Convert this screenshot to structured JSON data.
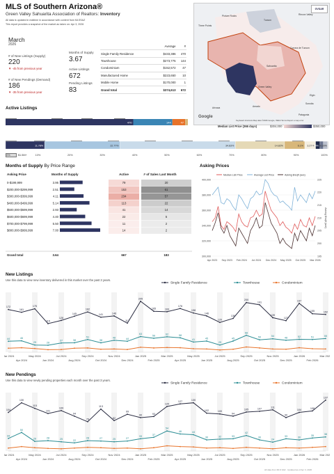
{
  "header": {
    "title": "MLS of Southern Arizona®",
    "subtitle": "Green Valley Sahuarita Association of Realtors",
    "subtitle_bold": "Inventory",
    "note1": "All data is updated in realtime in accordance with content from MLSSAZ",
    "note2": "This report provides a snapshot of the market as taken on:",
    "note_date": "Apr 3, 2026",
    "logo_text": "GVSAR"
  },
  "kpis": {
    "month": "March",
    "year": "2026",
    "new_listings_label": "# of New Listings (Supply)",
    "new_listings_value": "220",
    "new_listings_change": "-45 from previous year",
    "new_pendings_label": "# of New Pendings (Demand)",
    "new_pendings_value": "186",
    "new_pendings_change": "-35 from previous year",
    "mos_label": "Months of Supply",
    "mos_value": "3.67",
    "active_label": "Active Listings",
    "active_value": "672",
    "pending_label": "Pending Listings",
    "pending_value": "83"
  },
  "summary_table": {
    "col_avg": "Average",
    "col_count": "#",
    "rows": [
      {
        "type": "Single Family Residence",
        "avg": "$433,386",
        "count": "470"
      },
      {
        "type": "Townhouse",
        "avg": "$273,775",
        "count": "144"
      },
      {
        "type": "Condominium",
        "avg": "$152,572",
        "count": "47"
      },
      {
        "type": "Manufactured Home",
        "avg": "$223,650",
        "count": "10"
      },
      {
        "type": "Mobile Home",
        "avg": "$170,000",
        "count": "1"
      },
      {
        "type": "Grand total",
        "avg": "$374,613",
        "count": "672"
      }
    ]
  },
  "map": {
    "labels": [
      "Three Points",
      "Tucson",
      "Picture Rocks",
      "Rincon Valley",
      "Corona de Tucson",
      "Sahuarita",
      "Green Valley",
      "Arivaca",
      "Amado",
      "Sonoita",
      "Elgin",
      "Patagonia"
    ],
    "attribution": "Keyboard shortcuts   Map data ©2026 Google, INEGI   Terms   Report a map error",
    "google": "Google",
    "legend_title": "Median List Price (366 days)",
    "legend_min": "$304,000",
    "legend_max": "$350,000",
    "colors": {
      "light": "#f2d6d2",
      "mid": "#e8b4ae",
      "dark": "#2e3561",
      "border": "#c2410c"
    }
  },
  "active_listings": {
    "title": "Active Listings",
    "legend": [
      {
        "label": "Single Family Residence",
        "color": "#2e3561"
      },
      {
        "label": "Townhouse",
        "color": "#3a85b5"
      },
      {
        "label": "Condominium",
        "color": "#e8732a"
      },
      {
        "label": "Manufactured Home",
        "color": "#d8b77a"
      }
    ],
    "bar_labels": [
      "470",
      "144",
      "47"
    ]
  },
  "price_bands": {
    "legend": [
      {
        "label": "$0-$199,999",
        "color": "#2e3561"
      },
      {
        "label": "$200,000-$299,999",
        "color": "#a7c6e0"
      },
      {
        "label": "$300,000-$399,999",
        "color": "#c9dbea"
      },
      {
        "label": "$400,000-$499,999",
        "color": "#e5d9b6"
      },
      {
        "label": "$500,000-$599,999",
        "color": "#d8b77a"
      },
      {
        "label": "$600,000-$699,999",
        "color": "#f5efe1"
      },
      {
        "label": "$700,000-$799,999",
        "color": "#1f2a4a"
      },
      {
        "label": "$800,000-$999,999",
        "color": "#6b7590"
      },
      {
        "label": "$1M-$1.5M",
        "color": "#b9bfcc"
      },
      {
        "label": "$1.5M+",
        "color": "#d9d9d9"
      }
    ],
    "values": [
      11.78,
      22.77,
      34.83,
      14.82,
      6.1,
      3.27,
      1.34,
      1.04,
      1.19,
      0.3
    ],
    "labels": [
      "11.78%",
      "22.77%",
      "34.83%",
      "14.82%",
      "6.1%",
      "3.27%",
      "1.34%",
      "",
      "",
      "0.30%"
    ],
    "ticks": [
      "0%",
      "10%",
      "20%",
      "30%",
      "40%",
      "50%",
      "60%",
      "70%",
      "80%",
      "90%",
      "100%"
    ]
  },
  "mos_section": {
    "title": "Months of Supply",
    "title_suffix": "By Price Range",
    "headers": [
      "Asking Price",
      "Months of Supply",
      "Active",
      "# of Sales Last Month"
    ],
    "rows": [
      {
        "range": "0-$199,999",
        "mos": "3.95",
        "mos_v": 3.95,
        "active": "79",
        "sales": "20",
        "a": 79,
        "s": 20
      },
      {
        "range": "$200,000-$299,999",
        "mos": "2.51",
        "mos_v": 2.51,
        "active": "153",
        "sales": "61",
        "a": 153,
        "s": 61
      },
      {
        "range": "$300,000-$399,999",
        "mos": "4.11",
        "mos_v": 4.11,
        "active": "234",
        "sales": "57",
        "a": 234,
        "s": 57
      },
      {
        "range": "$400,000-$499,999",
        "mos": "5.14",
        "mos_v": 5.14,
        "active": "113",
        "sales": "22",
        "a": 113,
        "s": 22
      },
      {
        "range": "$500,000-$599,999",
        "mos": "2.93",
        "mos_v": 2.93,
        "active": "41",
        "sales": "14",
        "a": 41,
        "s": 14
      },
      {
        "range": "$600,000-$699,999",
        "mos": "4.40",
        "mos_v": 4.4,
        "active": "22",
        "sales": "5",
        "a": 22,
        "s": 5
      },
      {
        "range": "$700,000-$799,999",
        "mos": "5.50",
        "mos_v": 5.5,
        "active": "11",
        "sales": "2",
        "a": 11,
        "s": 2
      },
      {
        "range": "$800,000-$999,999",
        "mos": "7.00",
        "mos_v": 7.0,
        "active": "14",
        "sales": "2",
        "a": 14,
        "s": 2
      }
    ],
    "total": {
      "range": "Grand total",
      "mos": "3.64",
      "active": "667",
      "sales": "183"
    }
  },
  "chart_data": [
    {
      "type": "line",
      "title": "Asking Prices",
      "series": [
        {
          "name": "Median List Price",
          "color": "#e05a5a",
          "axis": "left",
          "values": [
            345000,
            350000,
            365000,
            340000,
            335000,
            345000,
            342000,
            338000,
            332000,
            355000,
            345000,
            340000,
            338000,
            350000,
            352000,
            360000,
            352000,
            355000,
            385000,
            372000,
            360000,
            355000,
            350000,
            340000,
            345000,
            338000,
            335000,
            330000,
            342000,
            335000,
            348000,
            340000,
            338000,
            350000,
            340000,
            352000
          ]
        },
        {
          "name": "Average List Price",
          "color": "#7fb2d8",
          "axis": "left",
          "values": [
            380000,
            385000,
            390000,
            370000,
            368000,
            375000,
            372000,
            365000,
            360000,
            380000,
            375000,
            368000,
            362000,
            375000,
            378000,
            385000,
            380000,
            382000,
            400000,
            395000,
            385000,
            380000,
            378000,
            370000,
            372000,
            368000,
            365000,
            360000,
            390000,
            372000,
            380000,
            375000,
            370000,
            382000,
            375000,
            385000
          ]
        },
        {
          "name": "Asking $/sqft (ave)",
          "color": "#4a2f2f",
          "axis": "right",
          "values": [
            205,
            208,
            212,
            206,
            204,
            207,
            203,
            201,
            199,
            206,
            204,
            202,
            200,
            205,
            207,
            210,
            206,
            207,
            216,
            212,
            208,
            206,
            204,
            200,
            202,
            200,
            199,
            198,
            204,
            201,
            205,
            203,
            201,
            206,
            203,
            207
          ]
        }
      ],
      "x_labels": [
        "Apr 2023",
        "Sep 2023",
        "Feb 2024",
        "Jul 2024",
        "Dec 2024",
        "May 2025",
        "Oct 2025",
        "Mar 2026"
      ],
      "y_left_ticks": [
        "400,000",
        "380,000",
        "360,000",
        "340,000",
        "320,000",
        "300,000"
      ],
      "y_right_ticks": [
        "225",
        "220",
        "215",
        "210",
        "205",
        "200",
        "195"
      ],
      "ylim_left": [
        300000,
        400000
      ],
      "ylim_right": [
        195,
        225
      ],
      "ylabel_right": "Asking $/sqft (ave)"
    },
    {
      "type": "line",
      "title": "New Listings",
      "caption": "Use this data to view new inventory delivered in this market over the past 3 years.",
      "x_labels_top": [
        "Mar 2024",
        "May 2024",
        "Jul 2024",
        "Sep 2024",
        "Nov 2024",
        "Jan 2025",
        "Mar 2025",
        "May 2025",
        "Jul 2025",
        "Sep 2025",
        "Nov 2025",
        "Jan 2026",
        "Mar 2026"
      ],
      "x_labels_bottom": [
        "Apr 2024",
        "Jun 2024",
        "Aug 2024",
        "Oct 2024",
        "Dec 2024",
        "Feb 2025",
        "Apr 2025",
        "Jun 2025",
        "Aug 2025",
        "Oct 2025",
        "Dec 2025",
        "Feb 2026"
      ],
      "ylim": [
        0,
        230
      ],
      "series": [
        {
          "name": "Single Family Residence",
          "color": "#2b2d42",
          "values": [
            172,
            161,
            175,
            115,
            128,
            145,
            162,
            141,
            146,
            117,
            205,
            165,
            163,
            176,
            158,
            146,
            120,
            136,
            200,
            191,
            139,
            127,
            197,
            155,
            152
          ],
          "labels": [
            "172",
            "161",
            "175",
            "115",
            "128",
            "145",
            "162",
            "141",
            "146",
            "117",
            "205",
            "165",
            "163",
            "176",
            "158",
            "146",
            "120",
            "136",
            "200",
            "191",
            "139",
            "127",
            "197",
            "155",
            "152"
          ]
        },
        {
          "name": "Townhouse",
          "color": "#2a8c93",
          "values": [
            44,
            46,
            29,
            28,
            37,
            38,
            51,
            38,
            48,
            44,
            63,
            56,
            62,
            58,
            41,
            45,
            29,
            45,
            68,
            50,
            54,
            48,
            52,
            51,
            55
          ],
          "labels": [
            "44",
            "46",
            "29",
            "28",
            "37",
            "38",
            "51",
            "38",
            "48",
            "44",
            "63",
            "56",
            "62",
            "58",
            "41",
            "45",
            "29",
            "45",
            "68",
            "50",
            "54",
            "48",
            "52",
            "51",
            "55"
          ]
        },
        {
          "name": "Condominium",
          "color": "#e8732a",
          "values": [
            16,
            18,
            15,
            10,
            11,
            16,
            17,
            12,
            13,
            11,
            20,
            17,
            19,
            18,
            14,
            13,
            9,
            12,
            21,
            17,
            13,
            12,
            18,
            14,
            13
          ],
          "labels": []
        }
      ]
    },
    {
      "type": "line",
      "title": "New Pendings",
      "caption": "Use this data to view newly pending properties each month over the past 3 years.",
      "x_labels_top": [
        "Mar 2024",
        "May 2024",
        "Jul 2024",
        "Sep 2024",
        "Nov 2024",
        "Jan 2025",
        "Mar 2025",
        "May 2025",
        "Jul 2025",
        "Sep 2025",
        "Nov 2025",
        "Jan 2026",
        "Mar 2026"
      ],
      "x_labels_bottom": [
        "Apr 2024",
        "Jun 2024",
        "Aug 2024",
        "Oct 2024",
        "Dec 2024",
        "Feb 2025",
        "Apr 2025",
        "Jun 2025",
        "Aug 2025",
        "Oct 2025",
        "Dec 2025",
        "Feb 2026"
      ],
      "ylim": [
        0,
        150
      ],
      "series": [
        {
          "name": "Single Family Residence",
          "color": "#2b2d42",
          "values": [
            104,
            130,
            115,
            101,
            109,
            94,
            79,
            113,
            82,
            99,
            90,
            93,
            120,
            127,
            130,
            102,
            100,
            94,
            105,
            107,
            111,
            90,
            104,
            108,
            137
          ],
          "labels": [
            "104",
            "130",
            "115",
            "101",
            "109",
            "94",
            "79",
            "113",
            "82",
            "99",
            "90",
            "93",
            "120",
            "127",
            "130",
            "102",
            "100",
            "94",
            "105",
            "107",
            "111",
            "90",
            "104",
            "108",
            "137"
          ]
        },
        {
          "name": "Townhouse",
          "color": "#2a8c93",
          "values": [
            34,
            50,
            26,
            28,
            25,
            22,
            28,
            27,
            25,
            27,
            33,
            37,
            54,
            46,
            44,
            30,
            32,
            33,
            42,
            30,
            24,
            33,
            30,
            35,
            38
          ],
          "labels": [
            "34",
            "50",
            "26",
            "28",
            "25",
            "22",
            "28",
            "27",
            "25",
            "27",
            "33",
            "37",
            "54",
            "46",
            "44",
            "30",
            "32",
            "33",
            "42",
            "30",
            "24",
            "33",
            "30",
            "35",
            "38"
          ]
        },
        {
          "name": "Condominium",
          "color": "#e8732a",
          "values": [
            8,
            12,
            9,
            7,
            6,
            8,
            10,
            9,
            7,
            8,
            6,
            9,
            14,
            12,
            11,
            8,
            9,
            7,
            10,
            8,
            6,
            9,
            8,
            10,
            12
          ],
          "labels": []
        }
      ]
    }
  ],
  "footer": {
    "left": "All data from MLS SAZ · Updated as of",
    "right": "Apr 3, 2026"
  }
}
